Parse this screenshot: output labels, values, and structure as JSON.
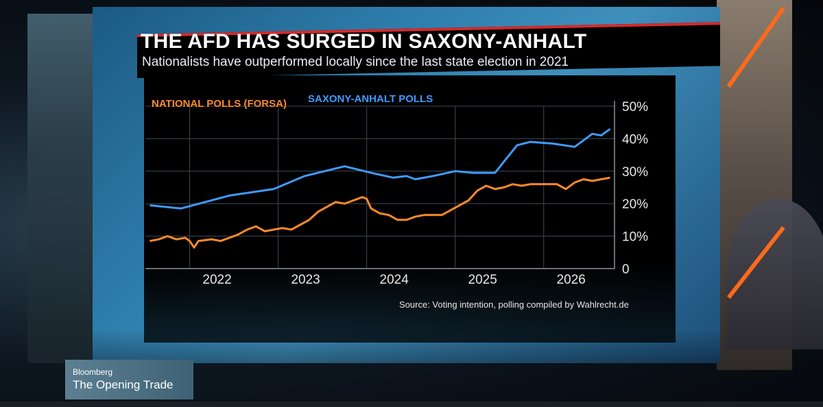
{
  "headline": "THE AFD HAS SURGED IN SAXONY-ANHALT",
  "subheadline": "Nationalists have outperformed locally since the last state election in 2021",
  "source": "Source: Voting intention, polling compiled by Wahlrecht.de",
  "lower_third": {
    "brand": "Bloomberg",
    "show": "The Opening Trade"
  },
  "colors": {
    "national": "#ff8a2a",
    "saxony": "#3f9bff",
    "title_accent": "#d62a2a"
  },
  "chart_data": {
    "type": "line",
    "title": "THE AFD HAS SURGED IN SAXONY-ANHALT",
    "subtitle": "Nationalists have outperformed locally since the last state election in 2021",
    "xlabel": "",
    "ylabel": "",
    "x_ticks": [
      "2022",
      "2023",
      "2024",
      "2025",
      "2026"
    ],
    "y_ticks": [
      "0",
      "10%",
      "20%",
      "30%",
      "40%",
      "50%"
    ],
    "xlim": [
      2021.5,
      2026.8
    ],
    "ylim": [
      0,
      50
    ],
    "grid": true,
    "legend_position": "top-left",
    "series": [
      {
        "name": "NATIONAL POLLS (FORSA)",
        "points": [
          [
            2021.55,
            8.5
          ],
          [
            2021.65,
            9.0
          ],
          [
            2021.75,
            10.0
          ],
          [
            2021.85,
            9.0
          ],
          [
            2021.95,
            9.5
          ],
          [
            2022.0,
            8.5
          ],
          [
            2022.05,
            6.5
          ],
          [
            2022.1,
            8.5
          ],
          [
            2022.25,
            9.0
          ],
          [
            2022.35,
            8.5
          ],
          [
            2022.45,
            9.5
          ],
          [
            2022.55,
            10.5
          ],
          [
            2022.65,
            12.0
          ],
          [
            2022.75,
            13.0
          ],
          [
            2022.85,
            11.5
          ],
          [
            2022.95,
            12.0
          ],
          [
            2023.05,
            12.5
          ],
          [
            2023.15,
            12.0
          ],
          [
            2023.25,
            13.5
          ],
          [
            2023.35,
            15.0
          ],
          [
            2023.45,
            17.5
          ],
          [
            2023.55,
            19.0
          ],
          [
            2023.65,
            20.5
          ],
          [
            2023.75,
            20.0
          ],
          [
            2023.85,
            21.0
          ],
          [
            2023.95,
            22.0
          ],
          [
            2024.0,
            21.5
          ],
          [
            2024.05,
            18.5
          ],
          [
            2024.15,
            17.0
          ],
          [
            2024.25,
            16.5
          ],
          [
            2024.35,
            15.0
          ],
          [
            2024.45,
            15.0
          ],
          [
            2024.55,
            16.0
          ],
          [
            2024.65,
            16.5
          ],
          [
            2024.75,
            16.5
          ],
          [
            2024.85,
            16.5
          ],
          [
            2024.95,
            18.0
          ],
          [
            2025.05,
            19.5
          ],
          [
            2025.15,
            21.0
          ],
          [
            2025.25,
            24.0
          ],
          [
            2025.35,
            25.5
          ],
          [
            2025.45,
            24.5
          ],
          [
            2025.55,
            25.0
          ],
          [
            2025.65,
            26.0
          ],
          [
            2025.75,
            25.5
          ],
          [
            2025.85,
            26.0
          ],
          [
            2025.95,
            26.0
          ],
          [
            2026.05,
            26.0
          ],
          [
            2026.15,
            26.0
          ],
          [
            2026.25,
            24.5
          ],
          [
            2026.35,
            26.5
          ],
          [
            2026.45,
            27.5
          ],
          [
            2026.55,
            27.0
          ],
          [
            2026.65,
            27.5
          ],
          [
            2026.75,
            28.0
          ]
        ]
      },
      {
        "name": "SAXONY-ANHALT POLLS",
        "points": [
          [
            2021.55,
            19.5
          ],
          [
            2021.9,
            18.5
          ],
          [
            2022.45,
            22.5
          ],
          [
            2022.95,
            24.5
          ],
          [
            2023.3,
            28.5
          ],
          [
            2023.75,
            31.5
          ],
          [
            2024.05,
            29.5
          ],
          [
            2024.3,
            28.0
          ],
          [
            2024.45,
            28.5
          ],
          [
            2024.55,
            27.5
          ],
          [
            2024.75,
            28.5
          ],
          [
            2025.0,
            30.0
          ],
          [
            2025.2,
            29.5
          ],
          [
            2025.45,
            29.5
          ],
          [
            2025.7,
            38.0
          ],
          [
            2025.85,
            39.0
          ],
          [
            2026.1,
            38.5
          ],
          [
            2026.35,
            37.5
          ],
          [
            2026.55,
            41.5
          ],
          [
            2026.65,
            41.0
          ],
          [
            2026.75,
            43.0
          ]
        ]
      }
    ]
  }
}
